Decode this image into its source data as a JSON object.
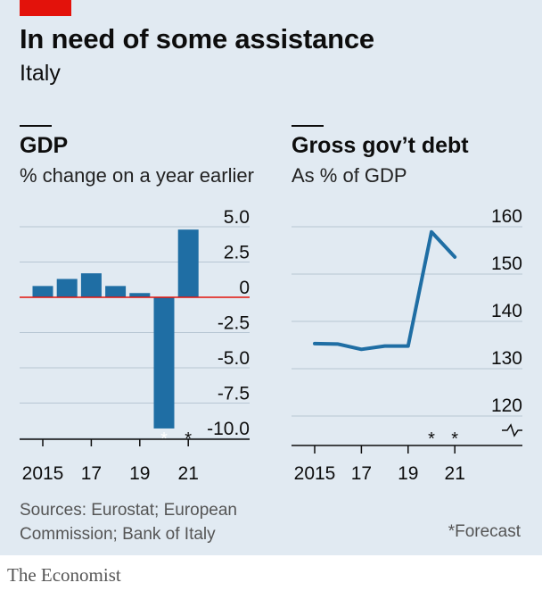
{
  "header": {
    "title": "In need of some assistance",
    "subtitle": "Italy"
  },
  "chart_data": [
    {
      "type": "bar",
      "title": "GDP",
      "ylabel": "% change on a year earlier",
      "categories": [
        "2015",
        "2016",
        "2017",
        "2018",
        "2019",
        "2020",
        "2021"
      ],
      "values": [
        0.8,
        1.3,
        1.7,
        0.8,
        0.3,
        -9.3,
        4.8
      ],
      "forecast": [
        "2020",
        "2021"
      ],
      "ylim": [
        -10,
        5
      ],
      "yticks": [
        "5.0",
        "2.5",
        "0",
        "-2.5",
        "-5.0",
        "-7.5",
        "-10.0"
      ],
      "xticks": [
        "2015",
        "17",
        "19",
        "21"
      ],
      "grid": true,
      "colors": {
        "bar": "#1f6ea4",
        "zero_line": "#e3120b"
      }
    },
    {
      "type": "line",
      "title": "Gross gov’t debt",
      "ylabel": "As % of GDP",
      "x": [
        "2015",
        "2016",
        "2017",
        "2018",
        "2019",
        "2020",
        "2021"
      ],
      "values": [
        135.3,
        135.2,
        134.1,
        134.8,
        134.8,
        158.9,
        153.6
      ],
      "forecast": [
        "2020",
        "2021"
      ],
      "ylim": [
        115,
        160
      ],
      "axis_break": true,
      "yticks": [
        "160",
        "150",
        "140",
        "130",
        "120"
      ],
      "xticks": [
        "2015",
        "17",
        "19",
        "21"
      ],
      "grid": true,
      "colors": {
        "line": "#1f6ea4"
      }
    }
  ],
  "footer": {
    "source": "Sources: Eurostat; European Commission; Bank of Italy",
    "forecast_note": "*Forecast",
    "forecast_marker": "*",
    "brand": "The Economist"
  }
}
